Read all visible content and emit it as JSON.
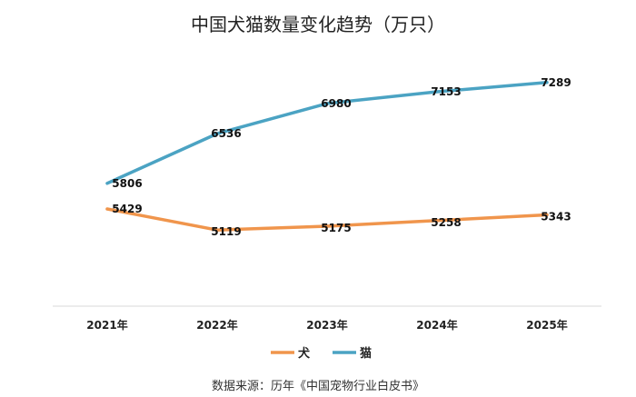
{
  "chart_data": {
    "type": "line",
    "title": "中国犬猫数量变化趋势（万只）",
    "categories": [
      "2021年",
      "2022年",
      "2023年",
      "2024年",
      "2025年"
    ],
    "series": [
      {
        "name": "犬",
        "values": [
          5429,
          5119,
          5175,
          5258,
          5343
        ],
        "color": "#F0954C"
      },
      {
        "name": "猫",
        "values": [
          5806,
          6536,
          6980,
          7153,
          7289
        ],
        "color": "#4BA3C3"
      }
    ],
    "ylim": [
      4000,
      7700
    ],
    "xlabel": "",
    "ylabel": "",
    "grid": false,
    "legend": "bottom-center"
  },
  "source": "数据来源：历年《中国宠物行业白皮书》"
}
